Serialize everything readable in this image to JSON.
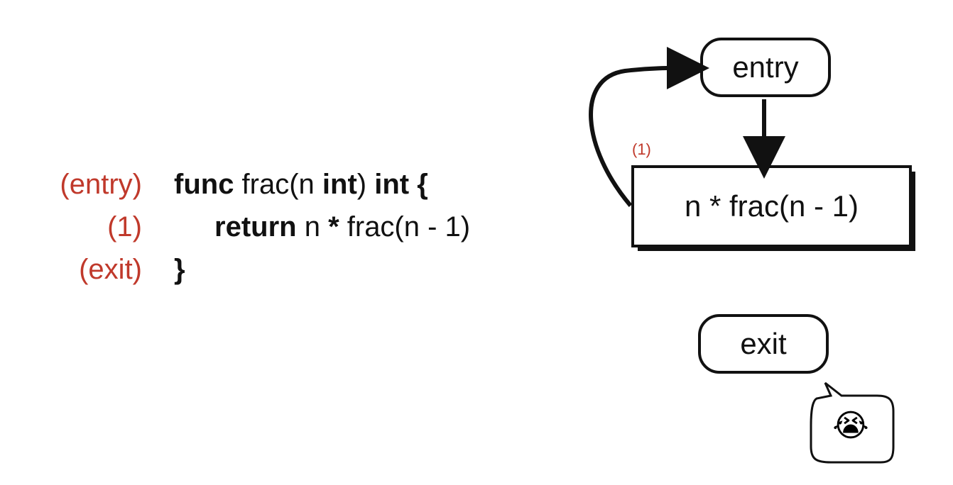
{
  "code": {
    "labels": [
      "(entry)",
      "(1)",
      "(exit)"
    ],
    "line1": {
      "kw1": "func",
      "t1": " frac(n ",
      "kw2": "int",
      "t2": ") ",
      "kw3": "int",
      "t3": " ",
      "kw4": "{"
    },
    "line2": {
      "kw1": "return",
      "t1": " n ",
      "kw2": "*",
      "t2": " frac(n - 1)"
    },
    "line3": {
      "kw1": "}"
    }
  },
  "graph": {
    "entry_label": "entry",
    "body_label": "n * frac(n - 1)",
    "body_tag": "(1)",
    "exit_label": "exit",
    "speech_emoji": "😭"
  },
  "colors": {
    "label": "#c0392b",
    "ink": "#111111"
  }
}
